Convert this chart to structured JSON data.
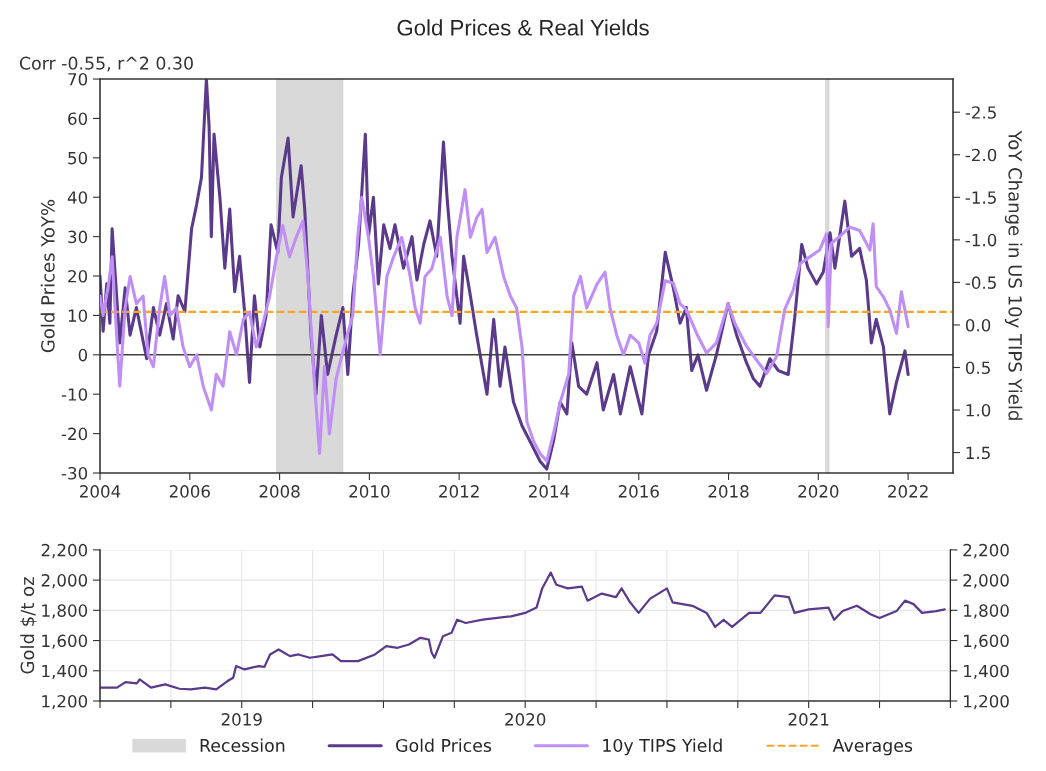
{
  "chart_data": [
    {
      "type": "line",
      "title": "Gold Prices & Real Yields",
      "ylabel": "Gold Prices YoY%",
      "y2label": "YoY Change in US 10y TIPS Yield",
      "annotations": [
        "Corr -0.55, r^2 0.30"
      ],
      "xlim": [
        2004,
        2023
      ],
      "xticks": [
        2004,
        2006,
        2008,
        2010,
        2012,
        2014,
        2016,
        2018,
        2020,
        2022
      ],
      "ylim": [
        -30,
        70
      ],
      "yticks": [
        -30,
        -20,
        -10,
        0,
        10,
        20,
        30,
        40,
        50,
        60,
        70
      ],
      "y2lim": [
        1.74,
        -2.89
      ],
      "y2ticks": [
        {
          "value": -2.5,
          "label": "-2.5"
        },
        {
          "value": -2.0,
          "label": "-2.0"
        },
        {
          "value": -1.5,
          "label": "-1.5"
        },
        {
          "value": -1.0,
          "label": "-1.0"
        },
        {
          "value": -0.5,
          "label": "-0.5"
        },
        {
          "value": 0.0,
          "label": "0.0"
        },
        {
          "value": 0.5,
          "label": "0.5"
        },
        {
          "value": 1.0,
          "label": "1.0"
        },
        {
          "value": 1.5,
          "label": "1.5"
        }
      ],
      "grid": false,
      "legend": "bottom",
      "line_style": "solid",
      "ref_lines": [
        {
          "axis": "y",
          "value": 0,
          "color": "#404040",
          "line_style": "solid"
        },
        {
          "axis": "y",
          "value": 10.9,
          "label": "Averages",
          "color": "#f5a623",
          "line_style": "dashed"
        }
      ],
      "bands": [
        {
          "axis": "x",
          "from": 2007.92,
          "to": 2009.42,
          "label": "Recession",
          "color": "#d9d9d9"
        },
        {
          "axis": "x",
          "from": 2020.15,
          "to": 2020.25,
          "color": "#d9d9d9"
        }
      ],
      "series": [
        {
          "name": "Gold Prices",
          "color": "#5b3a8c",
          "x": [
            2004.0,
            2004.07,
            2004.15,
            2004.22,
            2004.27,
            2004.37,
            2004.44,
            2004.56,
            2004.67,
            2004.81,
            2005.04,
            2005.19,
            2005.33,
            2005.48,
            2005.63,
            2005.74,
            2005.89,
            2006.04,
            2006.15,
            2006.26,
            2006.37,
            2006.43,
            2006.48,
            2006.54,
            2006.67,
            2006.78,
            2006.89,
            2007.0,
            2007.11,
            2007.22,
            2007.33,
            2007.44,
            2007.56,
            2007.7,
            2007.81,
            2007.96,
            2008.04,
            2008.19,
            2008.3,
            2008.48,
            2008.56,
            2008.7,
            2008.81,
            2008.93,
            2009.07,
            2009.26,
            2009.41,
            2009.52,
            2009.63,
            2009.76,
            2009.91,
            2009.98,
            2010.09,
            2010.2,
            2010.32,
            2010.46,
            2010.57,
            2010.76,
            2010.95,
            2011.06,
            2011.21,
            2011.35,
            2011.5,
            2011.65,
            2011.73,
            2011.84,
            2012.02,
            2012.1,
            2012.25,
            2012.39,
            2012.62,
            2012.77,
            2012.91,
            2013.02,
            2013.21,
            2013.4,
            2013.58,
            2013.8,
            2013.95,
            2014.1,
            2014.25,
            2014.4,
            2014.51,
            2014.66,
            2014.84,
            2015.07,
            2015.21,
            2015.44,
            2015.59,
            2015.81,
            2015.96,
            2016.07,
            2016.22,
            2016.4,
            2016.59,
            2016.77,
            2016.92,
            2017.06,
            2017.18,
            2017.32,
            2017.51,
            2017.73,
            2017.99,
            2018.18,
            2018.4,
            2018.55,
            2018.7,
            2018.92,
            2019.11,
            2019.33,
            2019.48,
            2019.63,
            2019.77,
            2019.96,
            2020.11,
            2020.26,
            2020.37,
            2020.59,
            2020.74,
            2020.92,
            2021.07,
            2021.18,
            2021.29,
            2021.45,
            2021.59,
            2021.74,
            2021.93,
            2022.0
          ],
          "values": [
            20,
            6,
            18,
            8,
            32,
            15,
            3,
            17,
            5,
            12,
            -1,
            12,
            5,
            13,
            4,
            15,
            11,
            32,
            38,
            45,
            70,
            58,
            30,
            56,
            40,
            22,
            37,
            16,
            25,
            11,
            -7,
            15,
            2,
            10,
            33,
            26,
            45,
            55,
            35,
            48,
            37,
            5,
            -10,
            10,
            -5,
            5,
            12,
            -5,
            15,
            28,
            56,
            30,
            40,
            18,
            33,
            27,
            33,
            22,
            30,
            19,
            28,
            34,
            25,
            54,
            40,
            25,
            8,
            25,
            15,
            5,
            -10,
            9,
            -8,
            2,
            -12,
            -18,
            -22,
            -27,
            -29,
            -22,
            -12,
            -15,
            3,
            -8,
            -10,
            -2,
            -14,
            -5,
            -15,
            -3,
            -10,
            -15,
            0,
            6,
            26,
            17,
            8,
            12,
            -4,
            0,
            -9,
            0,
            13,
            5,
            -2,
            -6,
            -8,
            -1,
            -4,
            -5,
            10,
            28,
            22,
            18,
            21,
            31,
            22,
            39,
            25,
            27,
            19,
            3,
            9,
            2,
            -15,
            -7,
            1,
            -5
          ]
        },
        {
          "name": "10y TIPS Yield",
          "color": "#c08ff5",
          "axis": "y2",
          "x": [
            2004.0,
            2004.07,
            2004.19,
            2004.27,
            2004.37,
            2004.44,
            2004.56,
            2004.67,
            2004.81,
            2004.96,
            2005.07,
            2005.19,
            2005.33,
            2005.44,
            2005.56,
            2005.7,
            2005.85,
            2006.0,
            2006.15,
            2006.3,
            2006.48,
            2006.59,
            2006.74,
            2006.89,
            2007.04,
            2007.19,
            2007.33,
            2007.48,
            2007.63,
            2007.78,
            2007.93,
            2008.07,
            2008.22,
            2008.37,
            2008.52,
            2008.63,
            2008.78,
            2008.89,
            2009.0,
            2009.11,
            2009.26,
            2009.48,
            2009.63,
            2009.74,
            2009.83,
            2009.98,
            2010.09,
            2010.24,
            2010.39,
            2010.54,
            2010.72,
            2010.91,
            2011.02,
            2011.13,
            2011.24,
            2011.39,
            2011.58,
            2011.73,
            2011.84,
            2011.95,
            2012.13,
            2012.25,
            2012.39,
            2012.51,
            2012.62,
            2012.8,
            2012.99,
            2013.14,
            2013.28,
            2013.4,
            2013.51,
            2013.66,
            2013.8,
            2013.95,
            2014.1,
            2014.25,
            2014.44,
            2014.55,
            2014.7,
            2014.84,
            2015.07,
            2015.25,
            2015.36,
            2015.51,
            2015.66,
            2015.81,
            2016.0,
            2016.14,
            2016.25,
            2016.4,
            2016.59,
            2016.77,
            2016.92,
            2017.06,
            2017.29,
            2017.51,
            2017.73,
            2017.99,
            2018.14,
            2018.4,
            2018.62,
            2018.85,
            2019.07,
            2019.25,
            2019.44,
            2019.59,
            2019.81,
            2020.03,
            2020.18,
            2020.22,
            2020.29,
            2020.48,
            2020.7,
            2020.92,
            2021.15,
            2021.22,
            2021.29,
            2021.45,
            2021.59,
            2021.74,
            2021.85,
            2022.0
          ],
          "values": [
            -0.34,
            -0.11,
            -0.48,
            -0.8,
            0.12,
            0.72,
            -0.2,
            -0.57,
            -0.25,
            -0.34,
            0.35,
            0.49,
            -0.2,
            -0.57,
            -0.11,
            -0.2,
            0.26,
            0.49,
            0.35,
            0.72,
            1.0,
            0.58,
            0.72,
            0.08,
            0.35,
            -0.06,
            -0.15,
            0.26,
            -0.02,
            -0.34,
            -0.8,
            -1.17,
            -0.8,
            -1.03,
            -1.22,
            -0.57,
            0.72,
            1.51,
            0.49,
            1.28,
            0.63,
            0.17,
            -0.11,
            -1.03,
            -1.5,
            -1.03,
            -0.57,
            0.35,
            -0.57,
            -0.8,
            -1.03,
            -0.57,
            -0.2,
            -0.02,
            -0.57,
            -0.66,
            -1.03,
            -0.34,
            -0.11,
            -1.03,
            -1.59,
            -1.03,
            -1.26,
            -1.36,
            -0.85,
            -1.03,
            -0.57,
            -0.34,
            -0.2,
            0.26,
            1.14,
            1.37,
            1.51,
            1.6,
            1.28,
            0.91,
            0.58,
            -0.34,
            -0.57,
            -0.2,
            -0.48,
            -0.62,
            -0.2,
            0.12,
            0.35,
            0.12,
            0.21,
            0.45,
            0.12,
            -0.02,
            -0.52,
            -0.49,
            -0.25,
            -0.18,
            0.1,
            0.33,
            0.21,
            -0.25,
            -0.02,
            0.25,
            0.41,
            0.57,
            0.37,
            -0.18,
            -0.41,
            -0.72,
            -0.8,
            -0.88,
            -1.07,
            0.02,
            -0.96,
            -1.04,
            -1.15,
            -1.11,
            -0.88,
            -1.19,
            -0.45,
            -0.33,
            -0.18,
            0.1,
            -0.39,
            0.02
          ]
        }
      ]
    },
    {
      "type": "line",
      "ylabel": "Gold $/t oz",
      "xlim": [
        2019,
        2022
      ],
      "xticks": [
        {
          "value": 2019,
          "label": null
        },
        {
          "value": 2019.25,
          "label": null
        },
        {
          "value": 2019.5,
          "label": "2019"
        },
        {
          "value": 2019.75,
          "label": null
        },
        {
          "value": 2020,
          "label": null
        },
        {
          "value": 2020.25,
          "label": null
        },
        {
          "value": 2020.5,
          "label": "2020"
        },
        {
          "value": 2020.75,
          "label": null
        },
        {
          "value": 2021,
          "label": null
        },
        {
          "value": 2021.25,
          "label": null
        },
        {
          "value": 2021.5,
          "label": "2021"
        },
        {
          "value": 2021.75,
          "label": null
        },
        {
          "value": 2022,
          "label": null
        }
      ],
      "ylim": [
        1200,
        2200
      ],
      "yticks": [
        {
          "value": 1200,
          "label": "1,200"
        },
        {
          "value": 1400,
          "label": "1,400"
        },
        {
          "value": 1600,
          "label": "1,600"
        },
        {
          "value": 1800,
          "label": "1,800"
        },
        {
          "value": 2000,
          "label": "2,000"
        },
        {
          "value": 2200,
          "label": "2,200"
        }
      ],
      "y2lim": [
        1200,
        2200
      ],
      "y2ticks": [
        {
          "value": 1200,
          "label": "1,200"
        },
        {
          "value": 1400,
          "label": "1,400"
        },
        {
          "value": 1600,
          "label": "1,600"
        },
        {
          "value": 1800,
          "label": "1,800"
        },
        {
          "value": 2000,
          "label": "2,000"
        },
        {
          "value": 2200,
          "label": "2,200"
        }
      ],
      "grid": true,
      "line_style": "solid",
      "series": [
        {
          "color": "#5b3a8c",
          "x": [
            2019.0,
            2019.06,
            2019.09,
            2019.13,
            2019.14,
            2019.18,
            2019.23,
            2019.28,
            2019.32,
            2019.37,
            2019.41,
            2019.45,
            2019.47,
            2019.48,
            2019.51,
            2019.56,
            2019.58,
            2019.6,
            2019.63,
            2019.67,
            2019.7,
            2019.74,
            2019.78,
            2019.82,
            2019.85,
            2019.91,
            2019.97,
            2020.01,
            2020.05,
            2020.09,
            2020.13,
            2020.16,
            2020.17,
            2020.18,
            2020.21,
            2020.24,
            2020.26,
            2020.29,
            2020.35,
            2020.45,
            2020.5,
            2020.54,
            2020.56,
            2020.59,
            2020.61,
            2020.65,
            2020.7,
            2020.72,
            2020.77,
            2020.82,
            2020.84,
            2020.87,
            2020.9,
            2020.94,
            2021.0,
            2021.02,
            2021.09,
            2021.14,
            2021.17,
            2021.2,
            2021.23,
            2021.29,
            2021.33,
            2021.38,
            2021.43,
            2021.45,
            2021.5,
            2021.57,
            2021.59,
            2021.62,
            2021.67,
            2021.72,
            2021.75,
            2021.81,
            2021.84,
            2021.87,
            2021.9,
            2021.95,
            2021.98
          ],
          "values": [
            1288,
            1288,
            1325,
            1316,
            1343,
            1288,
            1310,
            1281,
            1277,
            1288,
            1277,
            1332,
            1354,
            1431,
            1409,
            1431,
            1426,
            1508,
            1541,
            1497,
            1508,
            1486,
            1497,
            1508,
            1464,
            1464,
            1508,
            1563,
            1552,
            1574,
            1618,
            1607,
            1519,
            1486,
            1629,
            1651,
            1738,
            1716,
            1738,
            1760,
            1783,
            1818,
            1945,
            2050,
            1969,
            1945,
            1957,
            1864,
            1911,
            1887,
            1945,
            1853,
            1783,
            1876,
            1945,
            1853,
            1830,
            1783,
            1691,
            1737,
            1691,
            1783,
            1783,
            1899,
            1887,
            1783,
            1806,
            1818,
            1737,
            1795,
            1830,
            1772,
            1749,
            1795,
            1864,
            1841,
            1783,
            1795,
            1806
          ]
        }
      ]
    }
  ]
}
